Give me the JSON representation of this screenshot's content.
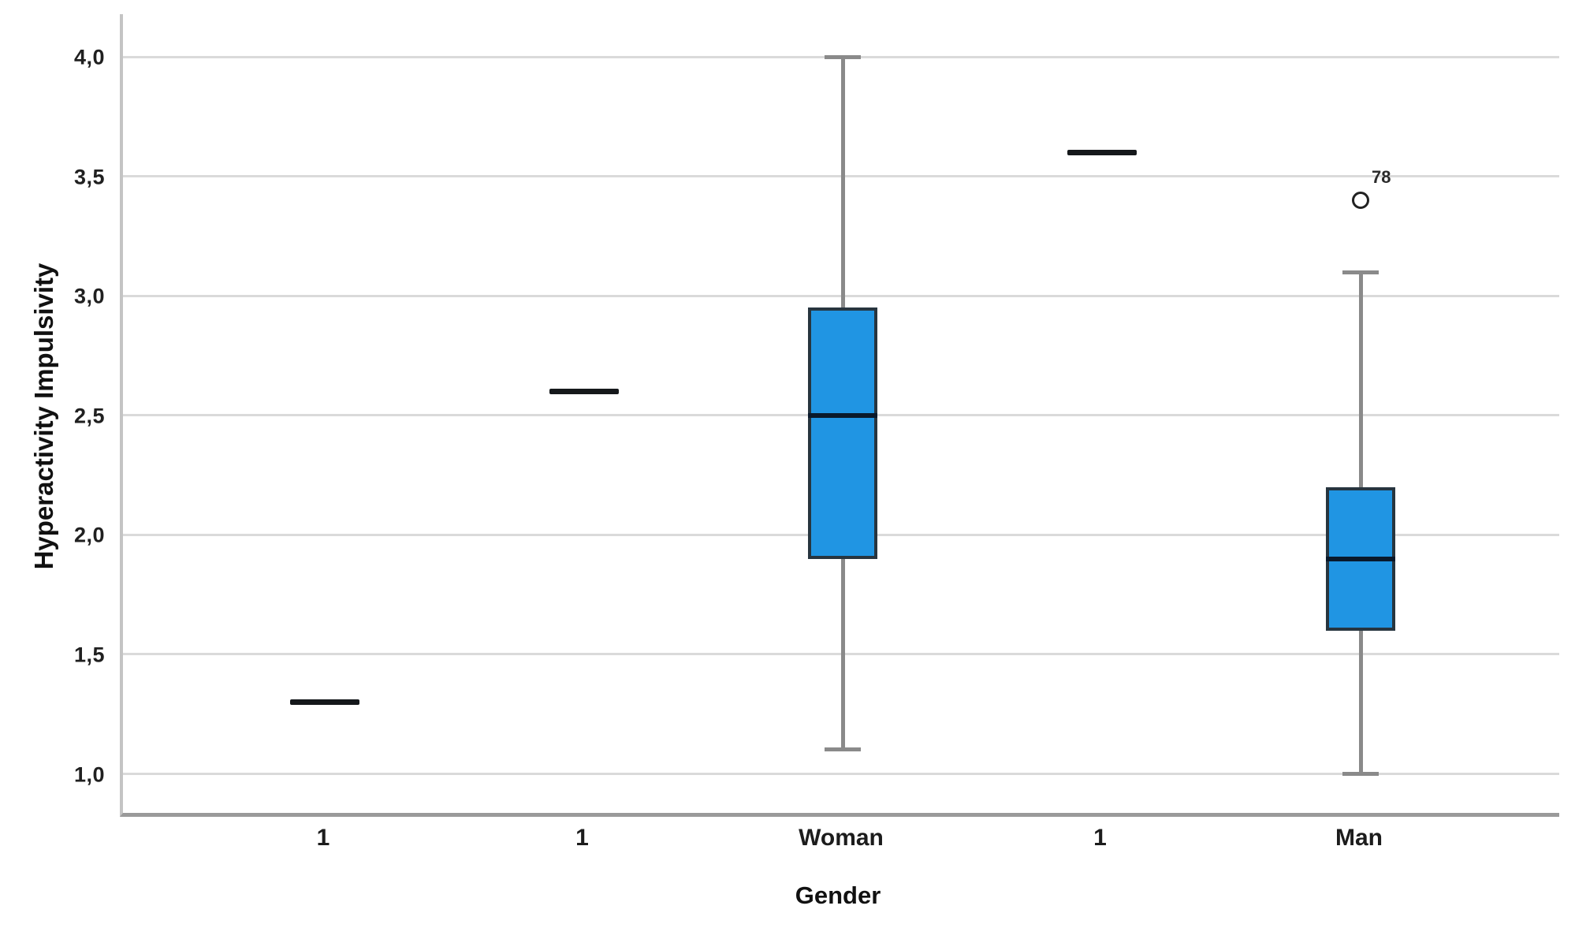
{
  "chart_data": {
    "type": "boxplot",
    "title": "",
    "xlabel": "Gender",
    "ylabel": "Hyperactivity Impulsivity",
    "ylim": [
      1.0,
      4.0
    ],
    "grid": true,
    "yticks": [
      {
        "label": "4,0",
        "value": 4.0
      },
      {
        "label": "3,5",
        "value": 3.5
      },
      {
        "label": "3,0",
        "value": 3.0
      },
      {
        "label": "2,5",
        "value": 2.5
      },
      {
        "label": "2,0",
        "value": 2.0
      },
      {
        "label": "1,5",
        "value": 1.5
      },
      {
        "label": "1,0",
        "value": 1.0
      }
    ],
    "categories": [
      {
        "label": "1",
        "type": "single-value",
        "value": 1.3
      },
      {
        "label": "1",
        "type": "single-value",
        "value": 2.6
      },
      {
        "label": "Woman",
        "type": "box",
        "whisker_low": 1.1,
        "q1": 1.9,
        "median": 2.5,
        "q3": 2.95,
        "whisker_high": 4.0,
        "outliers": []
      },
      {
        "label": "1",
        "type": "single-value",
        "value": 3.6
      },
      {
        "label": "Man",
        "type": "box",
        "whisker_low": 1.0,
        "q1": 1.6,
        "median": 1.9,
        "q3": 2.2,
        "whisker_high": 3.1,
        "outliers": [
          {
            "value": 3.4,
            "label": "78"
          }
        ]
      }
    ],
    "colors": {
      "box_fill": "#2095E3",
      "box_border": "#27353F",
      "median_line": "#09192B",
      "single_value_line": "#15181B",
      "whisker": "#8A8A8A",
      "gridline": "#DADADA",
      "y_axis_line": "#C4C4C4",
      "x_axis_line": "#9A9A9A"
    }
  }
}
